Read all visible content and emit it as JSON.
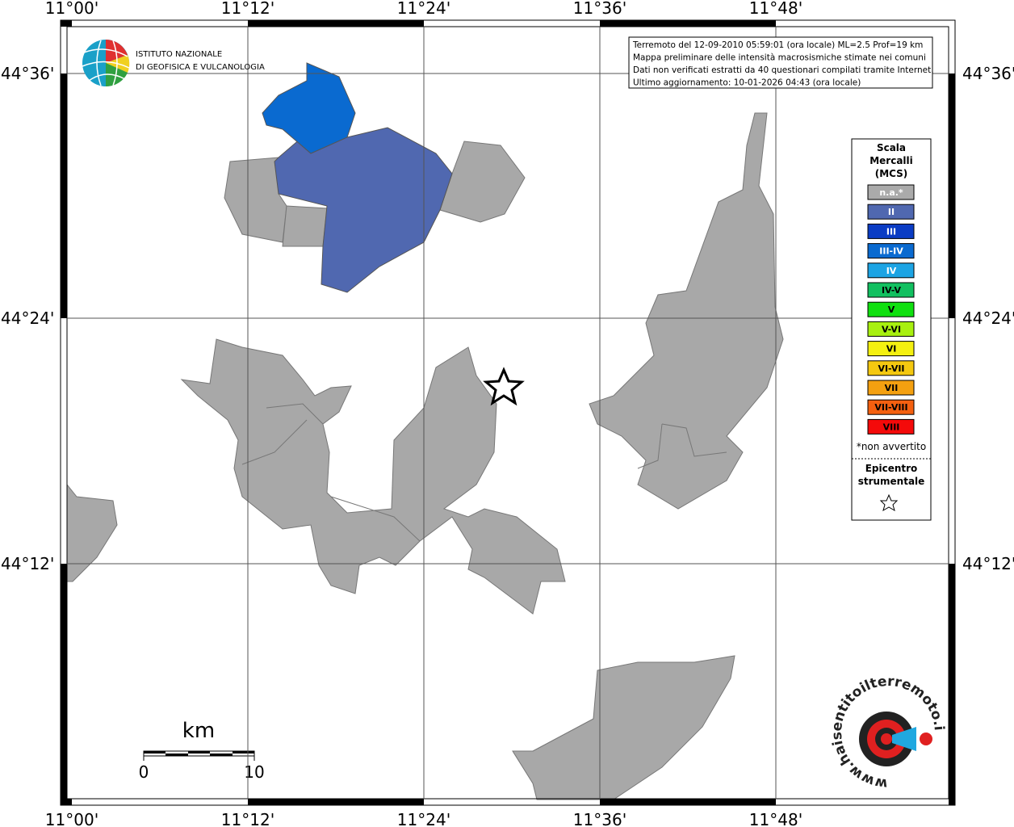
{
  "map": {
    "lon_labels": [
      "11°00'",
      "11°12'",
      "11°24'",
      "11°36'",
      "11°48'"
    ],
    "lat_labels": [
      "44°36'",
      "44°24'",
      "44°12'"
    ],
    "info_lines": [
      "Terremoto del 12-09-2010 05:59:01 (ora locale) ML=2.5 Prof=19 km",
      "Mappa preliminare delle intensità macrosismiche stimate nei comuni",
      "Dati non verificati estratti da 40 questionari compilati tramite Internet.",
      "Ultimo aggiornamento: 10-01-2026 04:43 (ora locale)"
    ],
    "institute": [
      "ISTITUTO NAZIONALE",
      "DI GEOFISICA E VULCANOLOGIA"
    ],
    "legend": {
      "title": [
        "Scala",
        "Mercalli",
        "(MCS)"
      ],
      "entries": [
        {
          "label": "n.a.*",
          "color": "#aaaaaa"
        },
        {
          "label": "II",
          "color": "#5068b0"
        },
        {
          "label": "III",
          "color": "#0a3cc4"
        },
        {
          "label": "III-IV",
          "color": "#0a6ad0"
        },
        {
          "label": "IV",
          "color": "#1ca4e4"
        },
        {
          "label": "IV-V",
          "color": "#12c060"
        },
        {
          "label": "V",
          "color": "#10e010"
        },
        {
          "label": "V-VI",
          "color": "#a8f010"
        },
        {
          "label": "VI",
          "color": "#f4f010"
        },
        {
          "label": "VI-VII",
          "color": "#f4c810"
        },
        {
          "label": "VII",
          "color": "#f4a010"
        },
        {
          "label": "VII-VIII",
          "color": "#f46010"
        },
        {
          "label": "VIII",
          "color": "#f40a0a"
        }
      ],
      "note": "*non avvertito",
      "epicenter": [
        "Epicentro",
        "strumentale"
      ]
    },
    "scale": {
      "unit": "km",
      "labels": [
        "0",
        "10"
      ]
    },
    "logo_text": "www.haisentitoilterremoto.it"
  }
}
